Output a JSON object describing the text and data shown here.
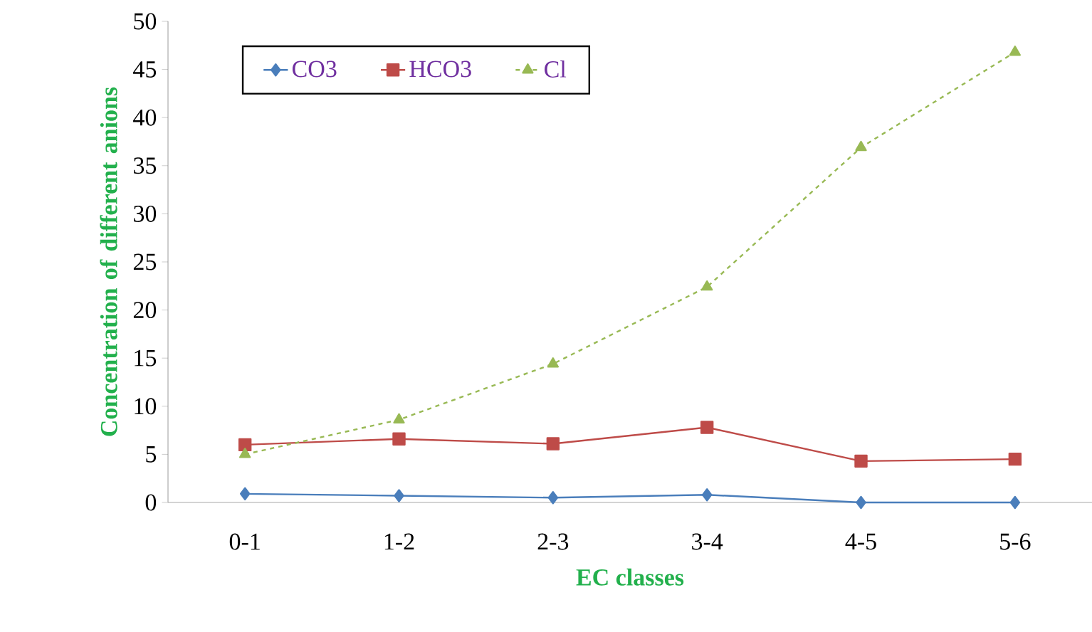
{
  "chart_data": {
    "type": "line",
    "xlabel": "EC classes",
    "ylabel": "Concentration of different anions",
    "categories": [
      "0-1",
      "1-2",
      "2-3",
      "3-4",
      "4-5",
      "5-6"
    ],
    "series": [
      {
        "name": "CO3",
        "color": "#4a7ebb",
        "marker": "diamond",
        "line_style": "solid",
        "values": [
          0.9,
          0.7,
          0.5,
          0.8,
          0,
          0
        ]
      },
      {
        "name": "HCO3",
        "color": "#be4b48",
        "marker": "square",
        "line_style": "solid",
        "values": [
          6.0,
          6.6,
          6.1,
          7.8,
          4.3,
          4.5
        ]
      },
      {
        "name": "Cl",
        "color": "#98b954",
        "marker": "triangle",
        "line_style": "dashed",
        "values": [
          5.0,
          8.6,
          14.4,
          22.4,
          36.9,
          46.8
        ]
      }
    ],
    "ylim": [
      0,
      50
    ],
    "yticks": [
      0,
      5,
      10,
      15,
      20,
      25,
      30,
      35,
      40,
      45,
      50
    ],
    "grid": false,
    "legend": "top"
  }
}
